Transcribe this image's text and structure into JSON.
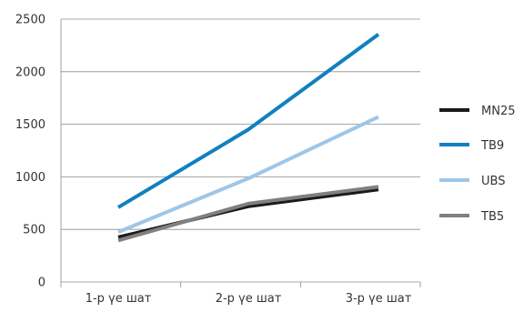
{
  "chart_data": {
    "type": "line",
    "title": "",
    "xlabel": "",
    "ylabel": "",
    "categories": [
      "1-р үе шат",
      "2-р үе шат",
      "3-р үе шат"
    ],
    "ylim": [
      0,
      2500
    ],
    "yticks": [
      0,
      500,
      1000,
      1500,
      2000,
      2500
    ],
    "grid": true,
    "legend_position": "right",
    "series": [
      {
        "name": "MN25",
        "color": "#1a1a1a",
        "values": [
          425,
          720,
          880
        ]
      },
      {
        "name": "TB9",
        "color": "#1180bf",
        "values": [
          710,
          1450,
          2355
        ]
      },
      {
        "name": "UBS",
        "color": "#9ec6e8",
        "values": [
          475,
          985,
          1570
        ]
      },
      {
        "name": "TB5",
        "color": "#808080",
        "values": [
          395,
          745,
          905
        ]
      }
    ]
  }
}
